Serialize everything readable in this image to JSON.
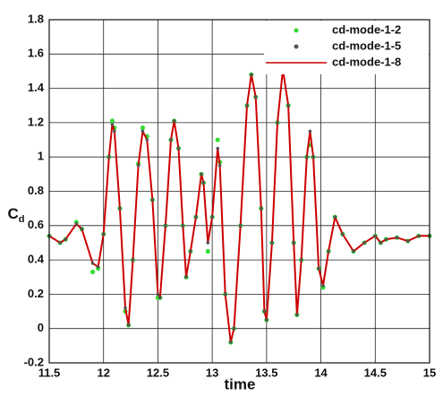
{
  "chart_data": {
    "type": "line",
    "xlabel": "time",
    "ylabel": "C",
    "ylabel_sub": "d",
    "xlim": [
      11.5,
      15
    ],
    "ylim": [
      -0.2,
      1.8
    ],
    "xticks": [
      11.5,
      12,
      12.5,
      13,
      13.5,
      14,
      14.5,
      15
    ],
    "yticks": [
      -0.2,
      0,
      0.2,
      0.4,
      0.6,
      0.8,
      1,
      1.2,
      1.4,
      1.6,
      1.8
    ],
    "grid": true,
    "legend": "upper right",
    "x": [
      11.5,
      11.6,
      11.65,
      11.75,
      11.8,
      11.9,
      11.95,
      12.0,
      12.05,
      12.08,
      12.1,
      12.15,
      12.2,
      12.23,
      12.27,
      12.32,
      12.36,
      12.4,
      12.45,
      12.5,
      12.52,
      12.57,
      12.62,
      12.65,
      12.69,
      12.73,
      12.76,
      12.8,
      12.85,
      12.9,
      12.92,
      12.96,
      13.0,
      13.05,
      13.07,
      13.12,
      13.17,
      13.2,
      13.26,
      13.32,
      13.36,
      13.4,
      13.45,
      13.48,
      13.5,
      13.55,
      13.6,
      13.65,
      13.7,
      13.75,
      13.78,
      13.82,
      13.87,
      13.9,
      13.93,
      13.98,
      14.02,
      14.07,
      14.13,
      14.2,
      14.3,
      14.4,
      14.5,
      14.55,
      14.6,
      14.7,
      14.8,
      14.9,
      15.0
    ],
    "series": [
      {
        "name": "cd-mode-1-2",
        "style": "dots",
        "color": "#33dd33",
        "values": [
          0.54,
          0.5,
          0.52,
          0.62,
          0.58,
          0.33,
          0.35,
          0.55,
          1.0,
          1.21,
          1.17,
          0.7,
          0.1,
          0.02,
          0.4,
          0.96,
          1.17,
          1.12,
          0.75,
          0.18,
          0.18,
          0.6,
          1.1,
          1.21,
          1.05,
          0.6,
          0.3,
          0.45,
          0.65,
          0.9,
          0.85,
          0.45,
          0.65,
          1.1,
          0.97,
          0.2,
          -0.08,
          0.0,
          0.6,
          1.3,
          1.48,
          1.35,
          0.7,
          0.1,
          0.05,
          0.5,
          1.2,
          1.51,
          1.3,
          0.5,
          0.08,
          0.4,
          1.0,
          1.07,
          1.0,
          0.35,
          0.24,
          0.45,
          0.65,
          0.55,
          0.45,
          0.5,
          0.54,
          0.5,
          0.52,
          0.53,
          0.51,
          0.54,
          0.54
        ]
      },
      {
        "name": "cd-mode-1-5",
        "style": "dots",
        "color": "#555555",
        "values": [
          0.54,
          0.5,
          0.52,
          0.61,
          0.58,
          0.38,
          0.36,
          0.55,
          1.0,
          1.19,
          1.15,
          0.7,
          0.12,
          0.02,
          0.4,
          0.95,
          1.15,
          1.1,
          0.75,
          0.2,
          0.18,
          0.6,
          1.1,
          1.21,
          1.05,
          0.6,
          0.3,
          0.45,
          0.65,
          0.9,
          0.85,
          0.5,
          0.65,
          1.05,
          0.95,
          0.2,
          -0.08,
          0.0,
          0.6,
          1.3,
          1.48,
          1.35,
          0.7,
          0.1,
          0.05,
          0.5,
          1.2,
          1.51,
          1.3,
          0.5,
          0.08,
          0.4,
          1.0,
          1.15,
          1.0,
          0.35,
          0.25,
          0.45,
          0.65,
          0.55,
          0.45,
          0.5,
          0.54,
          0.5,
          0.52,
          0.53,
          0.51,
          0.54,
          0.54
        ]
      },
      {
        "name": "cd-mode-1-8",
        "style": "line",
        "color": "#cc0000",
        "values": [
          0.54,
          0.5,
          0.52,
          0.61,
          0.58,
          0.38,
          0.36,
          0.55,
          1.0,
          1.19,
          1.15,
          0.7,
          0.12,
          0.02,
          0.4,
          0.95,
          1.15,
          1.1,
          0.75,
          0.2,
          0.18,
          0.6,
          1.1,
          1.21,
          1.05,
          0.6,
          0.3,
          0.45,
          0.65,
          0.9,
          0.85,
          0.5,
          0.65,
          1.05,
          0.95,
          0.2,
          -0.08,
          0.0,
          0.6,
          1.3,
          1.48,
          1.35,
          0.7,
          0.1,
          0.05,
          0.5,
          1.2,
          1.51,
          1.3,
          0.5,
          0.08,
          0.4,
          1.0,
          1.15,
          1.0,
          0.35,
          0.25,
          0.45,
          0.65,
          0.55,
          0.45,
          0.5,
          0.54,
          0.5,
          0.52,
          0.53,
          0.51,
          0.54,
          0.54
        ]
      }
    ]
  }
}
